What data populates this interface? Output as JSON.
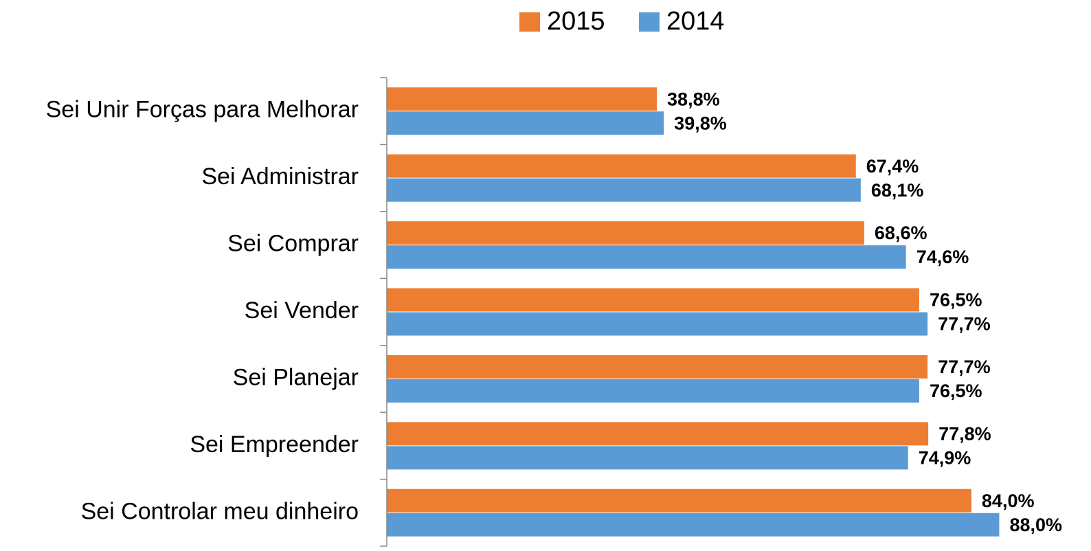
{
  "chart_data": {
    "type": "barh",
    "categories": [
      "Sei Unir Forças para Melhorar",
      "Sei Administrar",
      "Sei Comprar",
      "Sei Vender",
      "Sei Planejar",
      "Sei Empreender",
      "Sei Controlar meu dinheiro"
    ],
    "series": [
      {
        "name": "2015",
        "color": "#ED7D31",
        "values": [
          38.8,
          67.4,
          68.6,
          76.5,
          77.7,
          77.8,
          84.0
        ],
        "value_labels": [
          "38,8%",
          "67,4%",
          "68,6%",
          "76,5%",
          "77,7%",
          "77,8%",
          "84,0%"
        ]
      },
      {
        "name": "2014",
        "color": "#5B9BD5",
        "values": [
          39.8,
          68.1,
          74.6,
          77.7,
          76.5,
          74.9,
          88.0
        ],
        "value_labels": [
          "39,8%",
          "68,1%",
          "74,6%",
          "77,7%",
          "76,5%",
          "74,9%",
          "88,0%"
        ]
      }
    ],
    "xlim": [
      0,
      100
    ],
    "legend": "top"
  }
}
